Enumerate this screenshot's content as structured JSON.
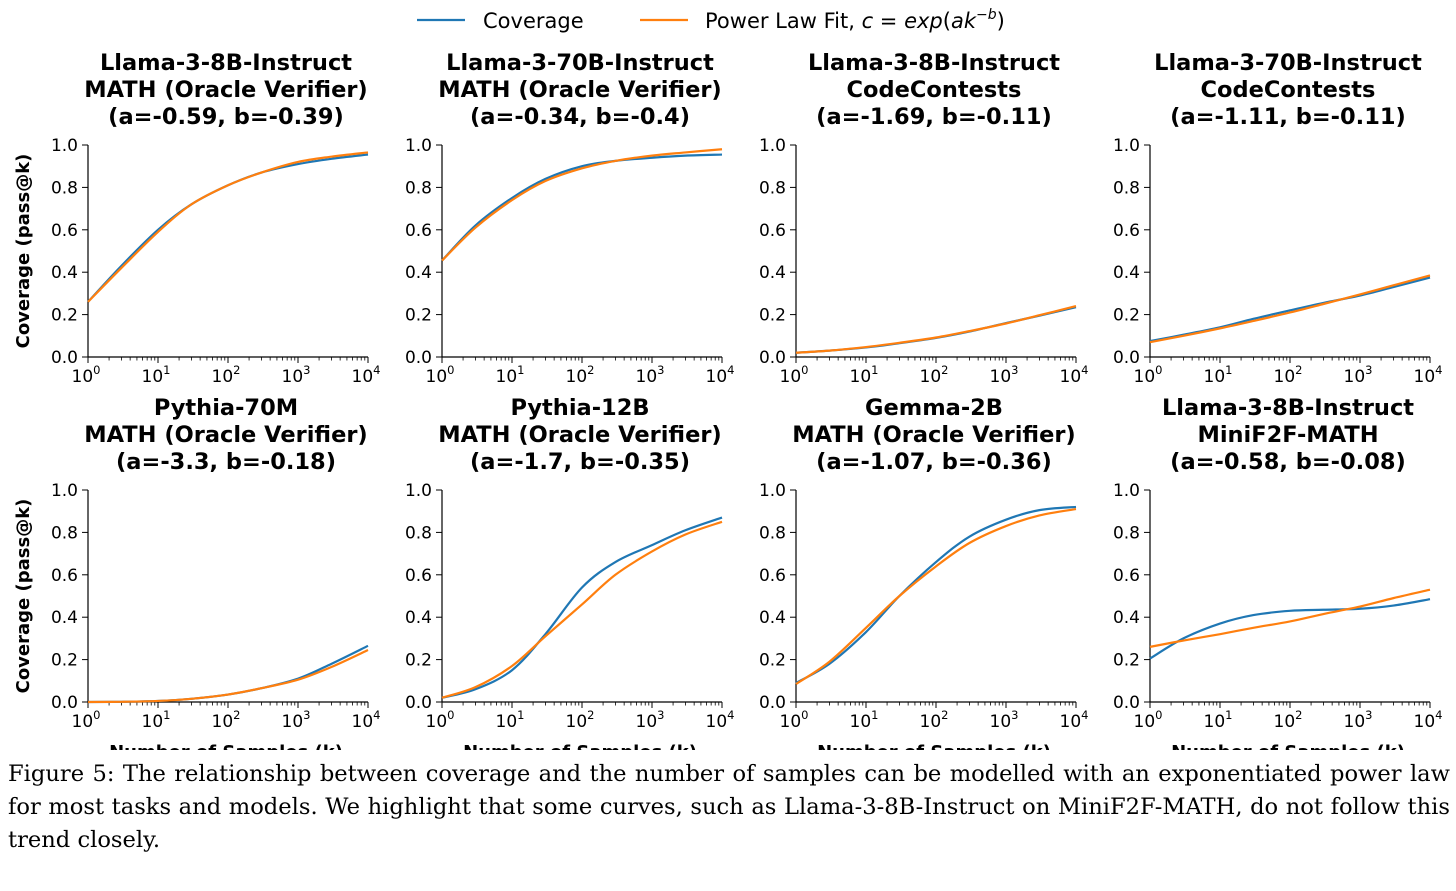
{
  "legend": {
    "entries": [
      {
        "label": "Coverage",
        "color": "#1f77b4"
      },
      {
        "label": "Power Law Fit, c = exp(ak^{-b})",
        "color": "#ff7f0e"
      }
    ],
    "coverage_label": "Coverage",
    "fit_prefix": "Power Law Fit, ",
    "fit_c": "c",
    "fit_eq": " = ",
    "fit_exp": "exp",
    "fit_open": "(",
    "fit_a": "a",
    "fit_k": "k",
    "fit_sup": "−b",
    "fit_close": ")",
    "placement": "top-center"
  },
  "axes": {
    "xlabel": "Number of Samples (k)",
    "ylabel": "Coverage (pass@k)",
    "xscale": "log",
    "xlim": [
      1,
      10000
    ],
    "ylim": [
      0,
      1.0
    ],
    "yticks": [
      "0.0",
      "0.2",
      "0.4",
      "0.6",
      "0.8",
      "1.0"
    ],
    "xticks": [
      {
        "base": "10",
        "exp": "0"
      },
      {
        "base": "10",
        "exp": "1"
      },
      {
        "base": "10",
        "exp": "2"
      },
      {
        "base": "10",
        "exp": "3"
      },
      {
        "base": "10",
        "exp": "4"
      }
    ]
  },
  "chart_data": [
    {
      "type": "line",
      "title_lines": [
        "Llama-3-8B-Instruct",
        "MATH (Oracle Verifier)",
        "(a=-0.59, b=-0.39)"
      ],
      "x": [
        1,
        3,
        10,
        30,
        100,
        300,
        1000,
        3000,
        10000
      ],
      "series": [
        {
          "name": "Coverage",
          "color": "#1f77b4",
          "values": [
            0.26,
            0.43,
            0.6,
            0.72,
            0.81,
            0.87,
            0.91,
            0.935,
            0.955
          ]
        },
        {
          "name": "Power Law Fit",
          "color": "#ff7f0e",
          "values": [
            0.26,
            0.42,
            0.59,
            0.72,
            0.81,
            0.87,
            0.92,
            0.945,
            0.965
          ]
        }
      ]
    },
    {
      "type": "line",
      "title_lines": [
        "Llama-3-70B-Instruct",
        "MATH (Oracle Verifier)",
        "(a=-0.34, b=-0.4)"
      ],
      "x": [
        1,
        3,
        10,
        30,
        100,
        300,
        1000,
        3000,
        10000
      ],
      "series": [
        {
          "name": "Coverage",
          "color": "#1f77b4",
          "values": [
            0.455,
            0.62,
            0.75,
            0.84,
            0.9,
            0.925,
            0.94,
            0.95,
            0.955
          ]
        },
        {
          "name": "Power Law Fit",
          "color": "#ff7f0e",
          "values": [
            0.455,
            0.61,
            0.74,
            0.83,
            0.89,
            0.925,
            0.95,
            0.965,
            0.98
          ]
        }
      ]
    },
    {
      "type": "line",
      "title_lines": [
        "Llama-3-8B-Instruct",
        "CodeContests",
        "(a=-1.69, b=-0.11)"
      ],
      "x": [
        1,
        3,
        10,
        30,
        100,
        300,
        1000,
        3000,
        10000
      ],
      "series": [
        {
          "name": "Coverage",
          "color": "#1f77b4",
          "values": [
            0.02,
            0.03,
            0.045,
            0.065,
            0.09,
            0.12,
            0.16,
            0.195,
            0.235
          ]
        },
        {
          "name": "Power Law Fit",
          "color": "#ff7f0e",
          "values": [
            0.02,
            0.03,
            0.047,
            0.067,
            0.092,
            0.122,
            0.158,
            0.197,
            0.24
          ]
        }
      ]
    },
    {
      "type": "line",
      "title_lines": [
        "Llama-3-70B-Instruct",
        "CodeContests",
        "(a=-1.11, b=-0.11)"
      ],
      "x": [
        1,
        3,
        10,
        30,
        100,
        300,
        1000,
        3000,
        10000
      ],
      "series": [
        {
          "name": "Coverage",
          "color": "#1f77b4",
          "values": [
            0.075,
            0.105,
            0.14,
            0.18,
            0.22,
            0.255,
            0.29,
            0.33,
            0.375
          ]
        },
        {
          "name": "Power Law Fit",
          "color": "#ff7f0e",
          "values": [
            0.07,
            0.1,
            0.135,
            0.17,
            0.21,
            0.25,
            0.295,
            0.338,
            0.385
          ]
        }
      ]
    },
    {
      "type": "line",
      "title_lines": [
        "Pythia-70M",
        "MATH (Oracle Verifier)",
        "(a=-3.3, b=-0.18)"
      ],
      "x": [
        1,
        3,
        10,
        30,
        100,
        300,
        1000,
        3000,
        10000
      ],
      "series": [
        {
          "name": "Coverage",
          "color": "#1f77b4",
          "values": [
            0.0,
            0.001,
            0.005,
            0.015,
            0.035,
            0.065,
            0.11,
            0.18,
            0.265
          ]
        },
        {
          "name": "Power Law Fit",
          "color": "#ff7f0e",
          "values": [
            0.0,
            0.001,
            0.005,
            0.015,
            0.035,
            0.065,
            0.105,
            0.165,
            0.245
          ]
        }
      ]
    },
    {
      "type": "line",
      "title_lines": [
        "Pythia-12B",
        "MATH (Oracle Verifier)",
        "(a=-1.7, b=-0.35)"
      ],
      "x": [
        1,
        3,
        10,
        30,
        100,
        300,
        1000,
        3000,
        10000
      ],
      "series": [
        {
          "name": "Coverage",
          "color": "#1f77b4",
          "values": [
            0.02,
            0.06,
            0.15,
            0.32,
            0.54,
            0.66,
            0.74,
            0.81,
            0.87
          ]
        },
        {
          "name": "Power Law Fit",
          "color": "#ff7f0e",
          "values": [
            0.02,
            0.07,
            0.17,
            0.31,
            0.46,
            0.6,
            0.71,
            0.79,
            0.85
          ]
        }
      ]
    },
    {
      "type": "line",
      "title_lines": [
        "Gemma-2B",
        "MATH (Oracle Verifier)",
        "(a=-1.07, b=-0.36)"
      ],
      "x": [
        1,
        3,
        10,
        30,
        100,
        300,
        1000,
        3000,
        10000
      ],
      "series": [
        {
          "name": "Coverage",
          "color": "#1f77b4",
          "values": [
            0.09,
            0.18,
            0.33,
            0.5,
            0.66,
            0.78,
            0.86,
            0.905,
            0.92
          ]
        },
        {
          "name": "Power Law Fit",
          "color": "#ff7f0e",
          "values": [
            0.085,
            0.19,
            0.35,
            0.5,
            0.64,
            0.75,
            0.83,
            0.88,
            0.91
          ]
        }
      ]
    },
    {
      "type": "line",
      "title_lines": [
        "Llama-3-8B-Instruct",
        "MiniF2F-MATH",
        "(a=-0.58, b=-0.08)"
      ],
      "x": [
        1,
        3,
        10,
        30,
        100,
        300,
        1000,
        3000,
        10000
      ],
      "series": [
        {
          "name": "Coverage",
          "color": "#1f77b4",
          "values": [
            0.205,
            0.3,
            0.37,
            0.41,
            0.43,
            0.435,
            0.44,
            0.455,
            0.485
          ]
        },
        {
          "name": "Power Law Fit",
          "color": "#ff7f0e",
          "values": [
            0.26,
            0.29,
            0.32,
            0.35,
            0.38,
            0.415,
            0.45,
            0.49,
            0.53
          ]
        }
      ]
    }
  ],
  "caption": "Figure 5: The relationship between coverage and the number of samples can be modelled with an exponentiated power law for most tasks and models. We highlight that some curves, such as Llama-3-8B-Instruct on MiniF2F-MATH, do not follow this trend closely."
}
